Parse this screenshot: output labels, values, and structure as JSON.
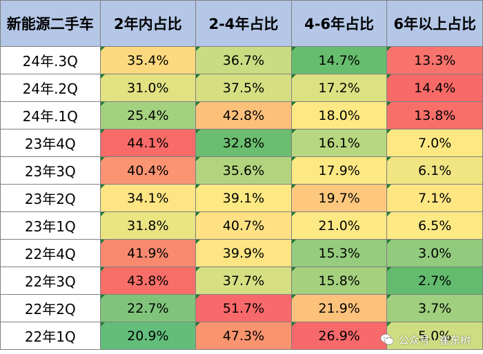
{
  "table": {
    "headers": [
      "新能源二手车",
      "2年内占比",
      "2-4年占比",
      "4-6年占比",
      "6年以上占比"
    ],
    "rows": [
      {
        "label": "24年.3Q",
        "values": [
          "35.4%",
          "36.7%",
          "14.7%",
          "13.3%"
        ],
        "colors": [
          "#fcd97e",
          "#c9dc82",
          "#66bd6e",
          "#f8736c"
        ]
      },
      {
        "label": "24年.2Q",
        "values": [
          "31.0%",
          "37.5%",
          "17.2%",
          "14.4%"
        ],
        "colors": [
          "#e2e282",
          "#d5df82",
          "#dce181",
          "#f86a67"
        ]
      },
      {
        "label": "24年.1Q",
        "values": [
          "25.4%",
          "42.8%",
          "18.0%",
          "13.8%"
        ],
        "colors": [
          "#a4d17f",
          "#fcc07b",
          "#fde983",
          "#f86e69"
        ]
      },
      {
        "label": "23年4Q",
        "values": [
          "44.1%",
          "32.8%",
          "16.1%",
          "7.0%"
        ],
        "colors": [
          "#f86b68",
          "#6bbd6f",
          "#b7d780",
          "#fee883"
        ]
      },
      {
        "label": "23年3Q",
        "values": [
          "40.4%",
          "35.6%",
          "17.9%",
          "6.1%"
        ],
        "colors": [
          "#fa9473",
          "#b2d47f",
          "#fde983",
          "#f0e483"
        ]
      },
      {
        "label": "23年2Q",
        "values": [
          "34.1%",
          "39.1%",
          "19.7%",
          "7.1%"
        ],
        "colors": [
          "#fee583",
          "#fde983",
          "#fdc87d",
          "#fee683"
        ]
      },
      {
        "label": "23年1Q",
        "values": [
          "31.8%",
          "40.7%",
          "21.0%",
          "6.5%"
        ],
        "colors": [
          "#eae482",
          "#fde183",
          "#fde983",
          "#fde983"
        ]
      },
      {
        "label": "22年4Q",
        "values": [
          "41.9%",
          "39.9%",
          "15.3%",
          "3.0%"
        ],
        "colors": [
          "#f98a70",
          "#fde583",
          "#96cc7e",
          "#93cb7e"
        ]
      },
      {
        "label": "22年3Q",
        "values": [
          "43.8%",
          "37.7%",
          "15.8%",
          "2.7%"
        ],
        "colors": [
          "#f86e69",
          "#d6df82",
          "#a5d17f",
          "#63bb6e"
        ]
      },
      {
        "label": "22年2Q",
        "values": [
          "22.7%",
          "51.7%",
          "21.9%",
          "3.7%"
        ],
        "colors": [
          "#7fc47a",
          "#f8696b",
          "#fcc27c",
          "#9fcf7f"
        ]
      },
      {
        "label": "22年1Q",
        "values": [
          "20.9%",
          "47.3%",
          "26.9%",
          "5.0%"
        ],
        "colors": [
          "#63be7b",
          "#f9946f",
          "#f8696b",
          "#cfdd82"
        ]
      }
    ]
  },
  "watermark": {
    "text": "公众号 · 崔东树",
    "icon": "wechat-icon"
  }
}
